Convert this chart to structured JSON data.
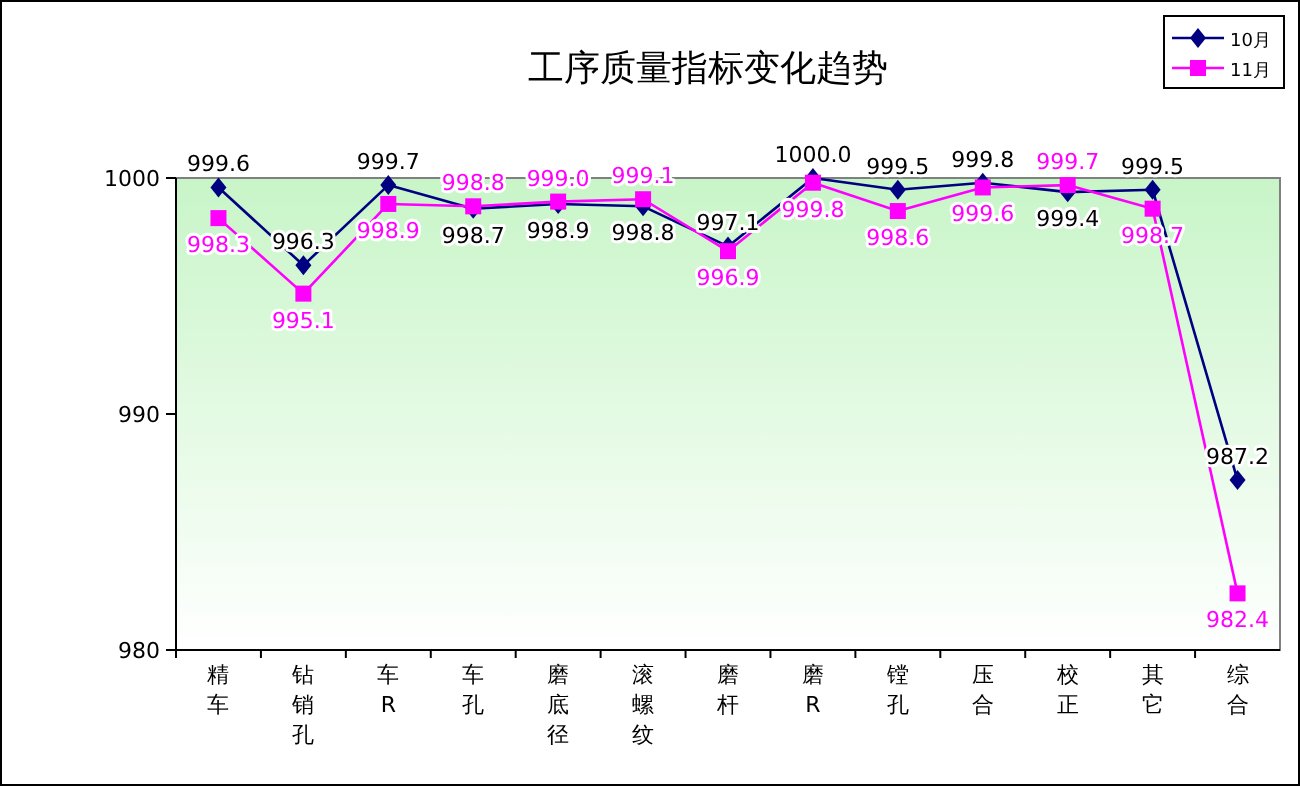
{
  "chart_data": {
    "type": "line",
    "title": "工序质量指标变化趋势",
    "categories": [
      "精车",
      "钻销孔",
      "车R",
      "车孔",
      "磨底径",
      "滚螺纹",
      "磨杆",
      "磨R",
      "镗孔",
      "压合",
      "校正",
      "其它",
      "综合"
    ],
    "series": [
      {
        "name": "10月",
        "color": "#000080",
        "marker": "diamond",
        "values": [
          999.6,
          996.3,
          999.7,
          998.7,
          998.9,
          998.8,
          997.1,
          1000.0,
          999.5,
          999.8,
          999.4,
          999.5,
          987.2
        ],
        "value_labels": [
          "999.6",
          "996.3",
          "999.7",
          "998.7",
          "998.9",
          "998.8",
          "997.1",
          "1000.0",
          "999.5",
          "999.8",
          "999.4",
          "999.5",
          "987.2"
        ]
      },
      {
        "name": "11月",
        "color": "#ff00ff",
        "marker": "square",
        "values": [
          998.3,
          995.1,
          998.9,
          998.8,
          999.0,
          999.1,
          996.9,
          999.8,
          998.6,
          999.6,
          999.7,
          998.7,
          982.4
        ],
        "value_labels": [
          "998.3",
          "995.1",
          "998.9",
          "998.8",
          "999.0",
          "999.1",
          "996.9",
          "999.8",
          "998.6",
          "999.6",
          "999.7",
          "998.7",
          "982.4"
        ]
      }
    ],
    "ylim": [
      980,
      1000
    ],
    "yticks": [
      980,
      990,
      1000
    ],
    "grid": false,
    "legend": "top right"
  }
}
